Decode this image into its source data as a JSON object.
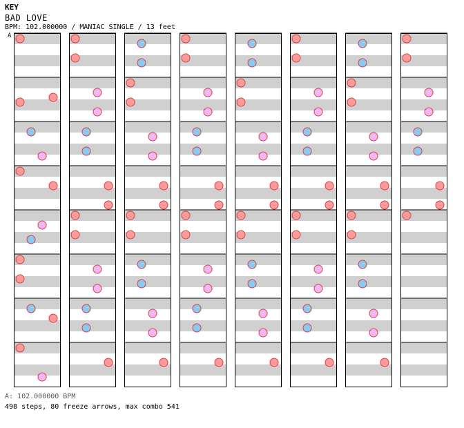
{
  "header": {
    "key": "KEY",
    "song_title": "BAD LOVE",
    "info": "BPM: 102.000000 / MANIAC SINGLE / 13 feet"
  },
  "marker_label": "A",
  "footer": {
    "bpm_line": "A: 102.000000 BPM",
    "stats_line": "498 steps, 80 freeze arrows, max combo 541"
  },
  "colors": {
    "stripe": "#d0d0d0",
    "border": "#000000",
    "left_arrow": "#ff9a9a",
    "down_arrow": "#8cc8f2",
    "up_arrow": "#f6b6f6",
    "right_arrow": "#ff9a9a",
    "freeze": "#a8eca8",
    "shock": "#66ee66",
    "mine": "#ffee44"
  },
  "chart_data": {
    "type": "step-chart",
    "columns": 8,
    "measures_per_column": 8,
    "lanes": [
      "left",
      "down",
      "up",
      "right"
    ],
    "steps": [
      [
        0,
        0,
        0
      ],
      [
        0,
        1,
        3
      ],
      [
        0,
        1,
        4
      ],
      [
        0,
        2,
        1
      ],
      [
        0,
        2,
        6
      ],
      [
        0,
        3,
        0
      ],
      [
        0,
        3,
        3
      ],
      [
        0,
        4,
        2
      ],
      [
        0,
        4,
        5
      ],
      [
        0,
        5,
        0
      ],
      [
        0,
        5,
        4
      ],
      [
        0,
        6,
        1
      ],
      [
        0,
        6,
        3
      ],
      [
        0,
        7,
        0
      ],
      [
        0,
        7,
        6
      ],
      [
        1,
        0,
        0
      ],
      [
        1,
        0,
        4
      ],
      [
        1,
        1,
        2
      ],
      [
        1,
        1,
        6
      ],
      [
        1,
        2,
        1
      ],
      [
        1,
        2,
        5
      ],
      [
        1,
        3,
        3
      ],
      [
        1,
        3,
        7
      ],
      [
        1,
        4,
        0
      ],
      [
        1,
        4,
        4
      ],
      [
        1,
        5,
        2
      ],
      [
        1,
        5,
        6
      ],
      [
        1,
        6,
        1
      ],
      [
        1,
        6,
        5
      ],
      [
        1,
        7,
        3
      ],
      [
        2,
        0,
        1
      ],
      [
        2,
        0,
        5
      ],
      [
        2,
        1,
        0
      ],
      [
        2,
        1,
        4
      ],
      [
        2,
        2,
        2
      ],
      [
        2,
        2,
        6
      ],
      [
        2,
        3,
        3
      ],
      [
        2,
        3,
        7
      ],
      [
        2,
        4,
        0
      ],
      [
        2,
        4,
        4
      ],
      [
        2,
        5,
        1
      ],
      [
        2,
        5,
        5
      ],
      [
        2,
        6,
        2
      ],
      [
        2,
        6,
        6
      ],
      [
        2,
        7,
        3
      ],
      [
        3,
        0,
        0
      ],
      [
        3,
        0,
        4
      ],
      [
        3,
        1,
        2
      ],
      [
        3,
        1,
        6
      ],
      [
        3,
        2,
        1
      ],
      [
        3,
        2,
        5
      ],
      [
        3,
        3,
        3
      ],
      [
        3,
        3,
        7
      ],
      [
        3,
        4,
        0
      ],
      [
        3,
        4,
        4
      ],
      [
        3,
        5,
        2
      ],
      [
        3,
        5,
        6
      ],
      [
        3,
        6,
        1
      ],
      [
        3,
        6,
        5
      ],
      [
        3,
        7,
        3
      ],
      [
        4,
        0,
        1
      ],
      [
        4,
        0,
        5
      ],
      [
        4,
        1,
        0
      ],
      [
        4,
        1,
        4
      ],
      [
        4,
        2,
        2
      ],
      [
        4,
        2,
        6
      ],
      [
        4,
        3,
        3
      ],
      [
        4,
        3,
        7
      ],
      [
        4,
        4,
        0
      ],
      [
        4,
        4,
        4
      ],
      [
        4,
        5,
        1
      ],
      [
        4,
        5,
        5
      ],
      [
        4,
        6,
        2
      ],
      [
        4,
        6,
        6
      ],
      [
        4,
        7,
        3
      ],
      [
        5,
        0,
        0
      ],
      [
        5,
        0,
        4
      ],
      [
        5,
        1,
        2
      ],
      [
        5,
        1,
        6
      ],
      [
        5,
        2,
        1
      ],
      [
        5,
        2,
        5
      ],
      [
        5,
        3,
        3
      ],
      [
        5,
        3,
        7
      ],
      [
        5,
        4,
        0
      ],
      [
        5,
        4,
        4
      ],
      [
        5,
        5,
        2
      ],
      [
        5,
        5,
        6
      ],
      [
        5,
        6,
        1
      ],
      [
        5,
        6,
        5
      ],
      [
        5,
        7,
        3
      ],
      [
        6,
        0,
        1
      ],
      [
        6,
        0,
        5
      ],
      [
        6,
        1,
        0
      ],
      [
        6,
        1,
        4
      ],
      [
        6,
        2,
        2
      ],
      [
        6,
        2,
        6
      ],
      [
        6,
        3,
        3
      ],
      [
        6,
        3,
        7
      ],
      [
        6,
        4,
        0
      ],
      [
        6,
        4,
        4
      ],
      [
        6,
        5,
        1
      ],
      [
        6,
        5,
        5
      ],
      [
        6,
        6,
        2
      ],
      [
        6,
        6,
        6
      ],
      [
        6,
        7,
        3
      ],
      [
        7,
        0,
        0
      ],
      [
        7,
        0,
        4
      ],
      [
        7,
        1,
        2
      ],
      [
        7,
        1,
        6
      ],
      [
        7,
        2,
        1
      ],
      [
        7,
        2,
        5
      ],
      [
        7,
        3,
        3
      ],
      [
        7,
        3,
        7
      ],
      [
        7,
        4,
        0
      ]
    ]
  }
}
